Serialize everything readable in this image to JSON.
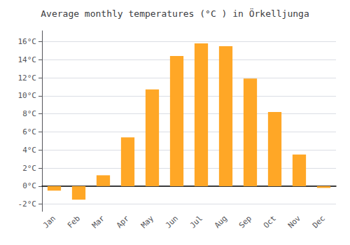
{
  "chart_data": {
    "type": "bar",
    "title": "Average monthly temperatures (°C ) in Örkelljunga",
    "categories": [
      "Jan",
      "Feb",
      "Mar",
      "Apr",
      "May",
      "Jun",
      "Jul",
      "Aug",
      "Sep",
      "Oct",
      "Nov",
      "Dec"
    ],
    "values": [
      -0.5,
      -1.5,
      1.2,
      5.4,
      10.7,
      14.4,
      15.8,
      15.5,
      11.9,
      8.2,
      3.5,
      -0.2
    ],
    "color": "#FFA726",
    "ylim": [
      -2.8,
      17.2
    ],
    "yticks": [
      {
        "value": -2,
        "label": "-2°C"
      },
      {
        "value": 0,
        "label": "0°C"
      },
      {
        "value": 2,
        "label": "2°C"
      },
      {
        "value": 4,
        "label": "4°C"
      },
      {
        "value": 6,
        "label": "6°C"
      },
      {
        "value": 8,
        "label": "8°C"
      },
      {
        "value": 10,
        "label": "10°C"
      },
      {
        "value": 12,
        "label": "12°C"
      },
      {
        "value": 14,
        "label": "14°C"
      },
      {
        "value": 16,
        "label": "16°C"
      }
    ],
    "grid": true
  }
}
